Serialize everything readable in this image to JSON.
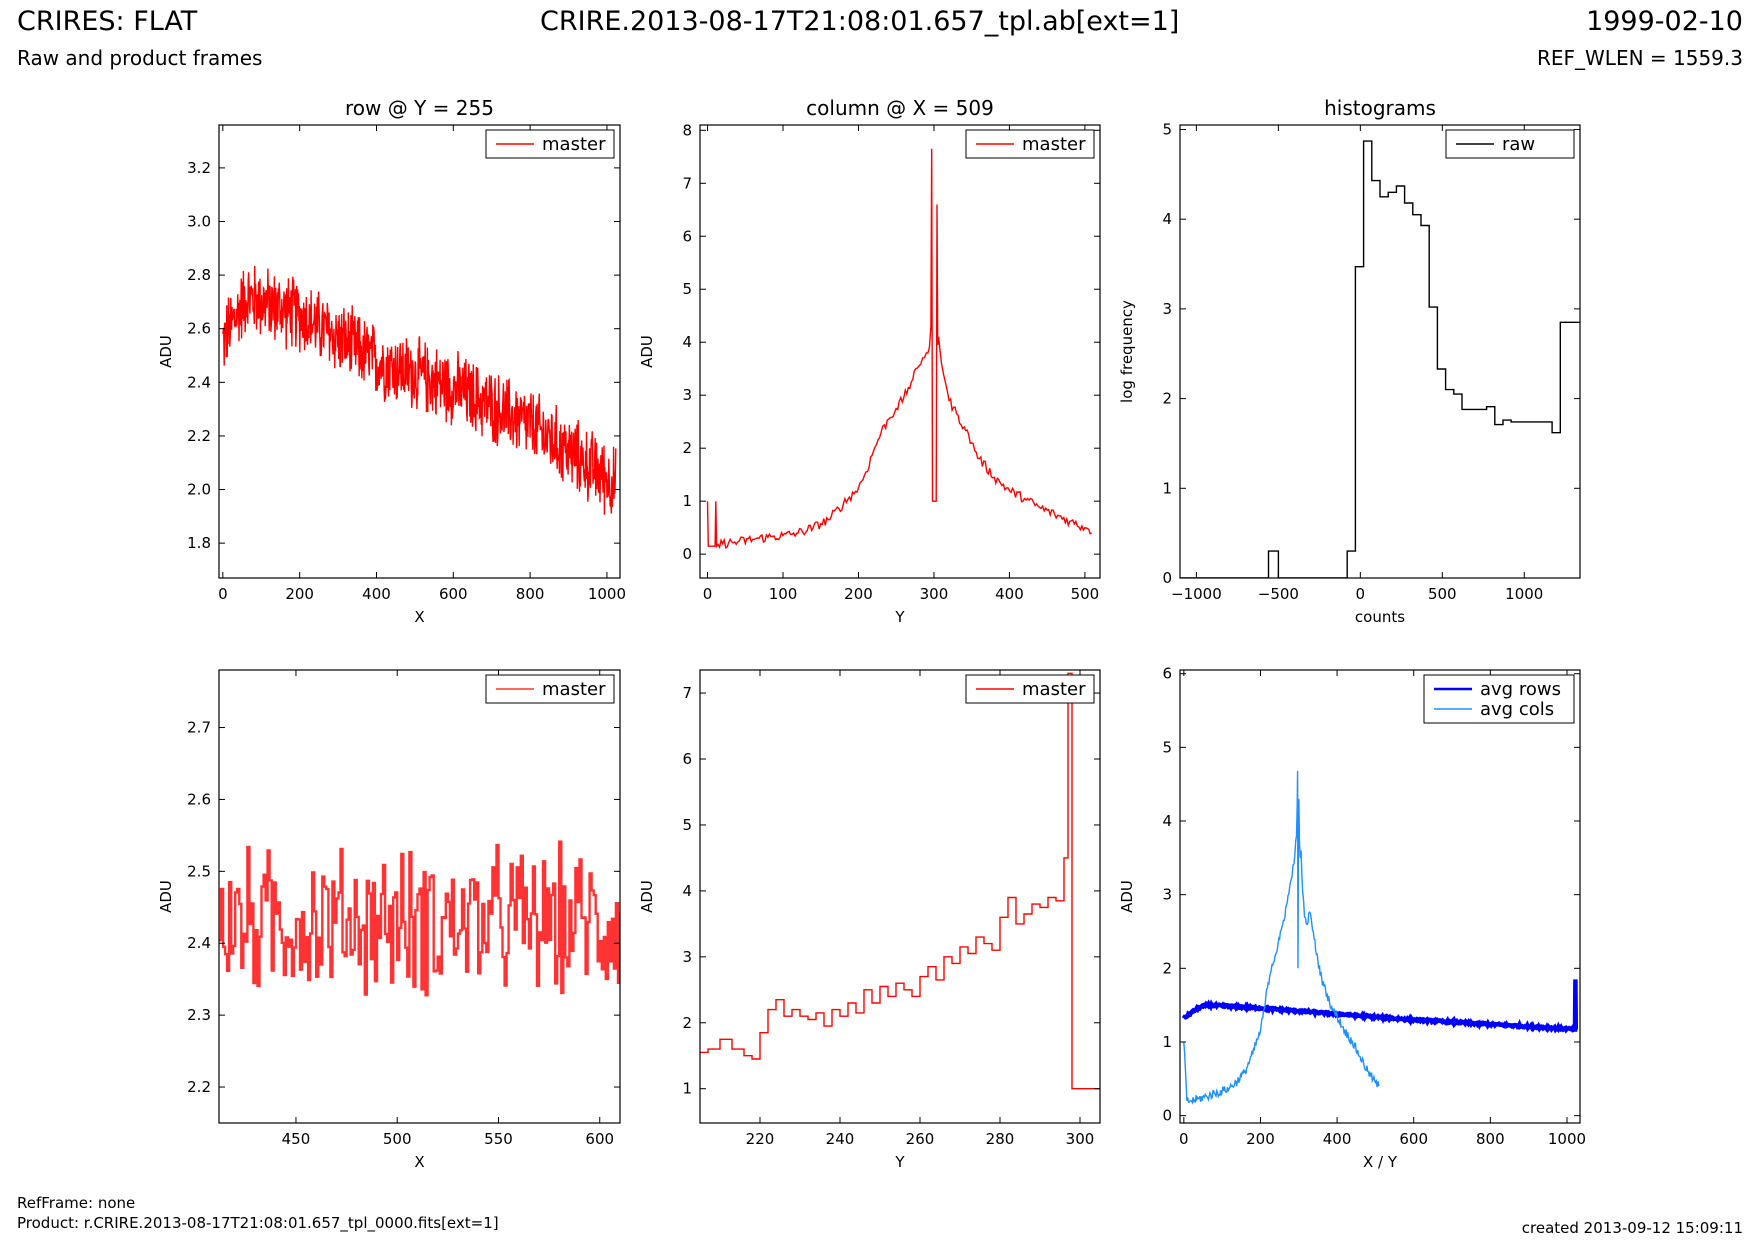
{
  "header": {
    "title": "CRIRES: FLAT",
    "subtitle": "Raw and product frames",
    "file": "CRIRE.2013-08-17T21:08:01.657_tpl.ab[ext=1]",
    "date": "1999-02-10",
    "ref_wlen": "REF_WLEN = 1559.3"
  },
  "footer": {
    "refframe": "RefFrame: none",
    "product": "Product: r.CRIRE.2013-08-17T21:08:01.657_tpl_0000.fits[ext=1]",
    "created": "created 2013-09-12 15:09:11"
  },
  "colors": {
    "red": "#ff0000",
    "red_light": "#ff3333",
    "black": "#000000",
    "blue": "#0000ff",
    "lightblue": "#1e90ff"
  },
  "chart_data": [
    {
      "type": "line",
      "title": "row @ Y = 255",
      "xlabel": "X",
      "ylabel": "ADU",
      "xlim": [
        -10,
        1034
      ],
      "ylim": [
        1.67,
        3.36
      ],
      "xticks": [
        0,
        200,
        400,
        600,
        800,
        1000
      ],
      "yticks": [
        1.8,
        2.0,
        2.2,
        2.4,
        2.6,
        2.8,
        3.0,
        3.2
      ],
      "tick_decimals": 1,
      "legend": "top-right",
      "series": [
        {
          "name": "master",
          "color": "#ff0000",
          "gen": "noise",
          "x0": 0,
          "x1": 1023,
          "n": 900,
          "trend_x": [
            0,
            60,
            200,
            400,
            600,
            800,
            1023
          ],
          "trend_y": [
            2.55,
            2.72,
            2.65,
            2.48,
            2.38,
            2.24,
            2.02
          ],
          "amp": 0.16
        }
      ]
    },
    {
      "type": "line",
      "title": "column @ X = 509",
      "xlabel": "Y",
      "ylabel": "ADU",
      "xlim": [
        -10,
        520
      ],
      "ylim": [
        -0.45,
        8.1
      ],
      "xticks": [
        0,
        100,
        200,
        300,
        400,
        500
      ],
      "yticks": [
        0,
        1,
        2,
        3,
        4,
        5,
        6,
        7,
        8
      ],
      "tick_decimals": 0,
      "legend": "top-right",
      "series": [
        {
          "name": "master",
          "color": "#ff0000",
          "gen": "points",
          "x": [
            0,
            1,
            2,
            3,
            4,
            5,
            6,
            7,
            8,
            9,
            10,
            11,
            12,
            20,
            40,
            60,
            80,
            100,
            120,
            140,
            160,
            180,
            200,
            210,
            220,
            230,
            240,
            250,
            260,
            270,
            280,
            285,
            290,
            294,
            296,
            297,
            298,
            299,
            300,
            301,
            302,
            303,
            304,
            305,
            306,
            307,
            308,
            310,
            315,
            320,
            330,
            340,
            350,
            360,
            380,
            400,
            420,
            440,
            460,
            480,
            500,
            505,
            509
          ],
          "y": [
            1.0,
            0.15,
            0.15,
            0.15,
            0.15,
            0.15,
            0.15,
            0.15,
            0.15,
            0.15,
            0.15,
            1.0,
            0.15,
            0.2,
            0.23,
            0.28,
            0.32,
            0.35,
            0.4,
            0.5,
            0.65,
            0.95,
            1.25,
            1.55,
            1.95,
            2.3,
            2.55,
            2.75,
            2.95,
            3.25,
            3.55,
            3.7,
            3.8,
            3.9,
            4.3,
            7.65,
            1.0,
            1.0,
            1.0,
            1.0,
            1.0,
            1.0,
            6.6,
            3.95,
            4.1,
            4.0,
            3.85,
            3.6,
            3.25,
            2.9,
            2.65,
            2.4,
            2.1,
            1.8,
            1.45,
            1.2,
            1.05,
            0.88,
            0.75,
            0.62,
            0.5,
            0.47,
            0.4
          ],
          "jitter": 0.09
        }
      ]
    },
    {
      "type": "line",
      "title": "histograms",
      "xlabel": "counts",
      "ylabel": "log frequency",
      "xlim": [
        -1100,
        1340
      ],
      "ylim": [
        0,
        5.05
      ],
      "xticks": [
        -1000,
        -500,
        0,
        500,
        1000
      ],
      "yticks": [
        0,
        1,
        2,
        3,
        4,
        5
      ],
      "tick_decimals": 0,
      "legend": "top-right",
      "series": [
        {
          "name": "raw",
          "color": "#000000",
          "gen": "step",
          "x": [
            -1100,
            -560,
            -500,
            -140,
            -80,
            -30,
            20,
            70,
            120,
            170,
            220,
            270,
            320,
            370,
            420,
            470,
            520,
            570,
            620,
            670,
            720,
            770,
            820,
            870,
            920,
            970,
            1020,
            1070,
            1120,
            1170,
            1220,
            1270,
            1340
          ],
          "y": [
            0,
            0.3,
            0,
            0,
            0.3,
            3.47,
            4.87,
            4.43,
            4.25,
            4.3,
            4.37,
            4.18,
            4.05,
            3.93,
            3.02,
            2.33,
            2.1,
            2.05,
            1.88,
            1.88,
            1.88,
            1.91,
            1.71,
            1.76,
            1.74,
            1.74,
            1.74,
            1.74,
            1.74,
            1.62,
            2.85,
            2.85,
            2.85
          ]
        }
      ]
    },
    {
      "type": "line",
      "title": "",
      "xlabel": "X",
      "ylabel": "ADU",
      "xlim": [
        412,
        610
      ],
      "ylim": [
        2.15,
        2.78
      ],
      "xticks": [
        450,
        500,
        550,
        600
      ],
      "yticks": [
        2.2,
        2.3,
        2.4,
        2.5,
        2.6,
        2.7
      ],
      "tick_decimals": 1,
      "legend": "top-right",
      "series": [
        {
          "name": "master",
          "color": "#ff3333",
          "gen": "stepnoise",
          "x0": 412,
          "x1": 610,
          "trend_x": [
            412,
            610
          ],
          "trend_y": [
            2.43,
            2.43
          ],
          "amp": 0.12
        }
      ]
    },
    {
      "type": "line",
      "title": "",
      "xlabel": "Y",
      "ylabel": "ADU",
      "xlim": [
        205,
        305
      ],
      "ylim": [
        0.48,
        7.35
      ],
      "xticks": [
        220,
        240,
        260,
        280,
        300
      ],
      "yticks": [
        1,
        2,
        3,
        4,
        5,
        6,
        7
      ],
      "tick_decimals": 0,
      "legend": "top-right",
      "series": [
        {
          "name": "master",
          "color": "#ff0000",
          "gen": "step",
          "x": [
            205,
            207,
            210,
            213,
            216,
            218,
            220,
            222,
            224,
            226,
            228,
            230,
            232,
            234,
            236,
            238,
            240,
            242,
            244,
            246,
            248,
            250,
            252,
            254,
            256,
            258,
            260,
            262,
            264,
            266,
            268,
            270,
            272,
            274,
            276,
            278,
            280,
            282,
            284,
            286,
            288,
            290,
            292,
            294,
            296,
            297,
            298,
            299,
            305
          ],
          "y": [
            1.55,
            1.6,
            1.75,
            1.6,
            1.5,
            1.45,
            1.85,
            2.2,
            2.35,
            2.1,
            2.2,
            2.1,
            2.05,
            2.15,
            1.95,
            2.2,
            2.1,
            2.3,
            2.15,
            2.5,
            2.3,
            2.55,
            2.4,
            2.6,
            2.5,
            2.4,
            2.7,
            2.85,
            2.65,
            3.0,
            2.9,
            3.15,
            3.05,
            3.3,
            3.2,
            3.1,
            3.6,
            3.9,
            3.5,
            3.65,
            3.8,
            3.75,
            3.9,
            3.85,
            4.5,
            7.3,
            1.0,
            1.0,
            1.0
          ]
        }
      ]
    },
    {
      "type": "line",
      "title": "",
      "xlabel": "X / Y",
      "ylabel": "ADU",
      "xlim": [
        -10,
        1034
      ],
      "ylim": [
        -0.1,
        6.05
      ],
      "xticks": [
        0,
        200,
        400,
        600,
        800,
        1000
      ],
      "yticks": [
        0,
        1,
        2,
        3,
        4,
        5,
        6
      ],
      "tick_decimals": 0,
      "legend": "top-right",
      "series": [
        {
          "name": "avg rows",
          "color": "#0000ff",
          "gen": "thick",
          "x": [
            0,
            20,
            40,
            60,
            100,
            200,
            300,
            400,
            500,
            600,
            700,
            800,
            900,
            1000,
            1020,
            1021,
            1022,
            1023
          ],
          "y": [
            1.32,
            1.4,
            1.47,
            1.5,
            1.49,
            1.46,
            1.42,
            1.38,
            1.34,
            1.3,
            1.27,
            1.24,
            1.21,
            1.18,
            1.17,
            1.17,
            1.85,
            1.17
          ],
          "jitter": 0.015
        },
        {
          "name": "avg cols",
          "color": "#1e90ff",
          "gen": "points",
          "x": [
            0,
            8,
            20,
            40,
            60,
            80,
            100,
            120,
            140,
            160,
            180,
            200,
            210,
            220,
            230,
            240,
            250,
            260,
            270,
            280,
            285,
            290,
            294,
            296,
            297,
            298,
            299,
            300,
            301,
            302,
            304,
            306,
            308,
            310,
            315,
            320,
            330,
            340,
            350,
            360,
            370,
            380,
            390,
            400,
            420,
            440,
            460,
            480,
            500,
            509
          ],
          "y": [
            1.0,
            0.2,
            0.2,
            0.23,
            0.26,
            0.3,
            0.33,
            0.38,
            0.47,
            0.6,
            0.85,
            1.15,
            1.45,
            1.8,
            2.05,
            2.2,
            2.4,
            2.65,
            2.9,
            3.2,
            3.4,
            3.55,
            3.8,
            4.2,
            4.68,
            2.0,
            3.6,
            4.3,
            4.0,
            3.7,
            3.5,
            3.6,
            3.3,
            3.05,
            2.7,
            2.6,
            2.75,
            2.4,
            2.1,
            1.85,
            1.7,
            1.55,
            1.42,
            1.35,
            1.15,
            1.0,
            0.8,
            0.6,
            0.45,
            0.4
          ],
          "jitter": 0.06
        }
      ]
    }
  ]
}
